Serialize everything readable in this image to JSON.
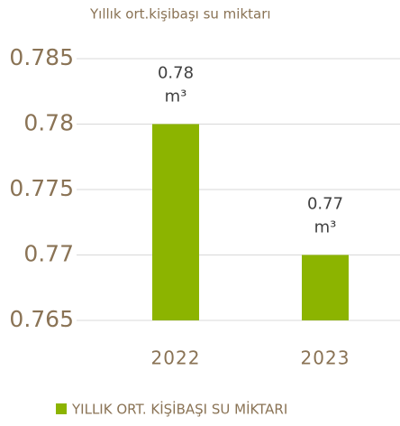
{
  "chart_data": {
    "type": "bar",
    "title": "Yıllık ort.kişibaşı su miktarı",
    "categories": [
      "2022",
      "2023"
    ],
    "series": [
      {
        "name": "YILLIK ORT. KİŞİBAŞI SU MİKTARI",
        "color": "#8cb400",
        "values": [
          0.78,
          0.77
        ],
        "value_labels": [
          "0.78 m³",
          "0.77 m³"
        ]
      }
    ],
    "ylim": [
      0.765,
      0.785
    ],
    "yticks": [
      0.765,
      0.77,
      0.775,
      0.78,
      0.785
    ],
    "grid": true,
    "legend": "bottom"
  }
}
